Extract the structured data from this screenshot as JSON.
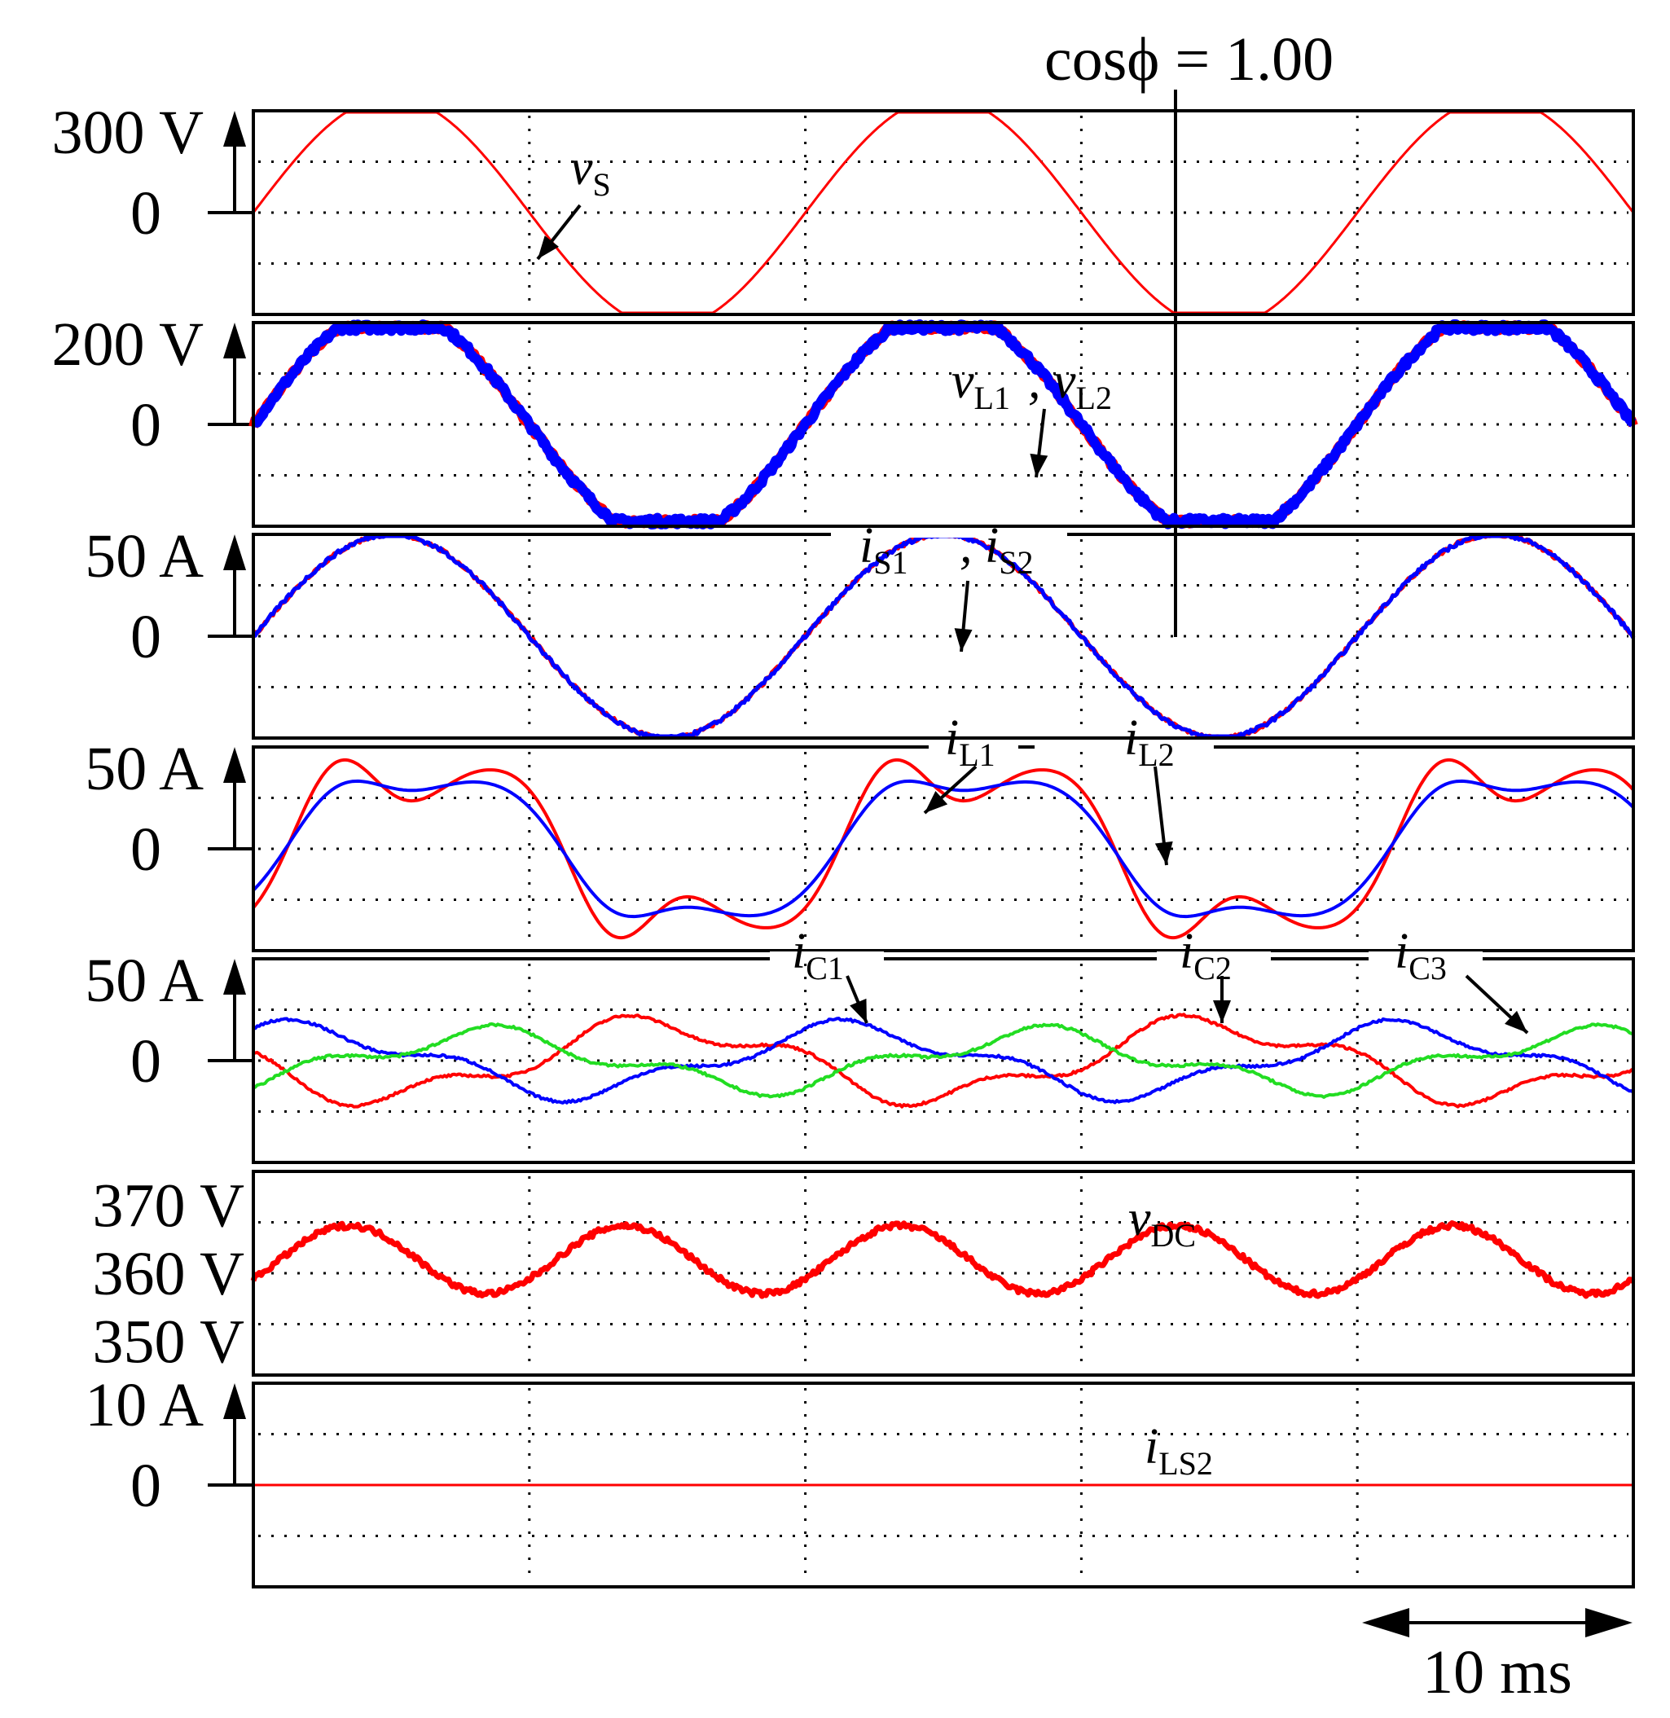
{
  "chart_data": {
    "type": "line",
    "title": "",
    "time_span_ms": 50,
    "time_divisions": 5,
    "time_scale_label": "10 ms",
    "power_factor_label": "cosϕ = 1.00",
    "colors": {
      "red": "#ff0000",
      "blue": "#0000ff",
      "green": "#22dd22",
      "black": "#000000"
    },
    "panels": [
      {
        "id": "vs",
        "unit": "V",
        "ylim": [
          -300,
          300
        ],
        "zero_line": true,
        "tick_labels": [
          "300 V",
          "0"
        ],
        "series": [
          {
            "name": "v_S",
            "color": "red",
            "kind": "clipped_sine",
            "amplitude": 340,
            "clip": 300,
            "phase_deg": 0,
            "width": 3
          }
        ],
        "labels": [
          {
            "main": "v",
            "sub": "S"
          }
        ]
      },
      {
        "id": "vl",
        "unit": "V",
        "ylim": [
          -200,
          200
        ],
        "zero_line": true,
        "tick_labels": [
          "200 V",
          "0"
        ],
        "series": [
          {
            "name": "v_L1",
            "color": "red",
            "kind": "clipped_sine",
            "amplitude": 230,
            "clip": 190,
            "phase_deg": 0,
            "width": 12,
            "noise": 5
          },
          {
            "name": "v_L2",
            "color": "blue",
            "kind": "clipped_sine",
            "amplitude": 230,
            "clip": 190,
            "phase_deg": 0,
            "width": 12,
            "noise": 7
          }
        ],
        "labels": [
          {
            "main": "v",
            "sub": "L1"
          },
          {
            "main": ", v",
            "sub": "L2"
          }
        ]
      },
      {
        "id": "is",
        "unit": "A",
        "ylim": [
          -50,
          50
        ],
        "zero_line": true,
        "tick_labels": [
          "50 A",
          "0"
        ],
        "series": [
          {
            "name": "i_S1",
            "color": "red",
            "kind": "sine",
            "amplitude": 50,
            "phase_deg": 0,
            "width": 5,
            "noise": 1
          },
          {
            "name": "i_S2",
            "color": "blue",
            "kind": "sine",
            "amplitude": 50,
            "phase_deg": 0,
            "width": 5,
            "noise": 1
          }
        ],
        "labels": [
          {
            "main": "i",
            "sub": "S1"
          },
          {
            "main": ", i",
            "sub": "S2"
          }
        ]
      },
      {
        "id": "il",
        "unit": "A",
        "ylim": [
          -50,
          50
        ],
        "zero_line": true,
        "tick_labels": [
          "50 A",
          "0"
        ],
        "series": [
          {
            "name": "i_L1",
            "color": "red",
            "kind": "harmonic",
            "coeffs": [
              0.72,
              0.3,
              -0.05
            ],
            "amplitude": 57,
            "width": 4
          },
          {
            "name": "i_L2",
            "color": "blue",
            "kind": "harmonic",
            "coeffs": [
              0.78,
              0.18,
              -0.02
            ],
            "amplitude": 48,
            "width": 4
          }
        ],
        "labels": [
          {
            "main": "i",
            "sub": "L1"
          },
          {
            "main": "i",
            "sub": "L2"
          }
        ]
      },
      {
        "id": "ic",
        "unit": "A",
        "ylim": [
          -50,
          50
        ],
        "zero_line": true,
        "tick_labels": [
          "50 A",
          "0"
        ],
        "series": [
          {
            "name": "i_C1",
            "color": "red",
            "kind": "ripple",
            "amplitude": 25,
            "ripple": 6,
            "phase_deg": 185,
            "width": 4,
            "noise": 0.6
          },
          {
            "name": "i_C2",
            "color": "blue",
            "kind": "ripple",
            "amplitude": 22,
            "ripple": 5,
            "phase_deg": 60,
            "width": 4,
            "noise": 0.6
          },
          {
            "name": "i_C3",
            "color": "green",
            "kind": "ripple",
            "amplitude": 18,
            "ripple": 5,
            "phase_deg": -60,
            "width": 4,
            "noise": 0.6
          }
        ],
        "labels": [
          {
            "main": "i",
            "sub": "C1"
          },
          {
            "main": "i",
            "sub": "C2"
          },
          {
            "main": "i",
            "sub": "C3"
          }
        ]
      },
      {
        "id": "vdc",
        "unit": "V",
        "ylim": [
          345,
          375
        ],
        "zero_line": false,
        "tick_labels": [
          "370 V",
          "360 V",
          "350 V"
        ],
        "tick_values": [
          370,
          360,
          350
        ],
        "series": [
          {
            "name": "v_DC",
            "color": "red",
            "kind": "dc_ripple",
            "offset": 362,
            "amplitude": 5,
            "width": 7,
            "noise": 0.4
          }
        ],
        "labels": [
          {
            "main": "v",
            "sub": "DC"
          }
        ]
      },
      {
        "id": "ils2",
        "unit": "A",
        "ylim": [
          -10,
          10
        ],
        "zero_line": true,
        "tick_labels": [
          "10 A",
          "0"
        ],
        "series": [
          {
            "name": "i_LS2",
            "color": "red",
            "kind": "flat",
            "value": 0,
            "width": 3
          }
        ],
        "labels": [
          {
            "main": "i",
            "sub": "LS2"
          }
        ]
      }
    ]
  }
}
